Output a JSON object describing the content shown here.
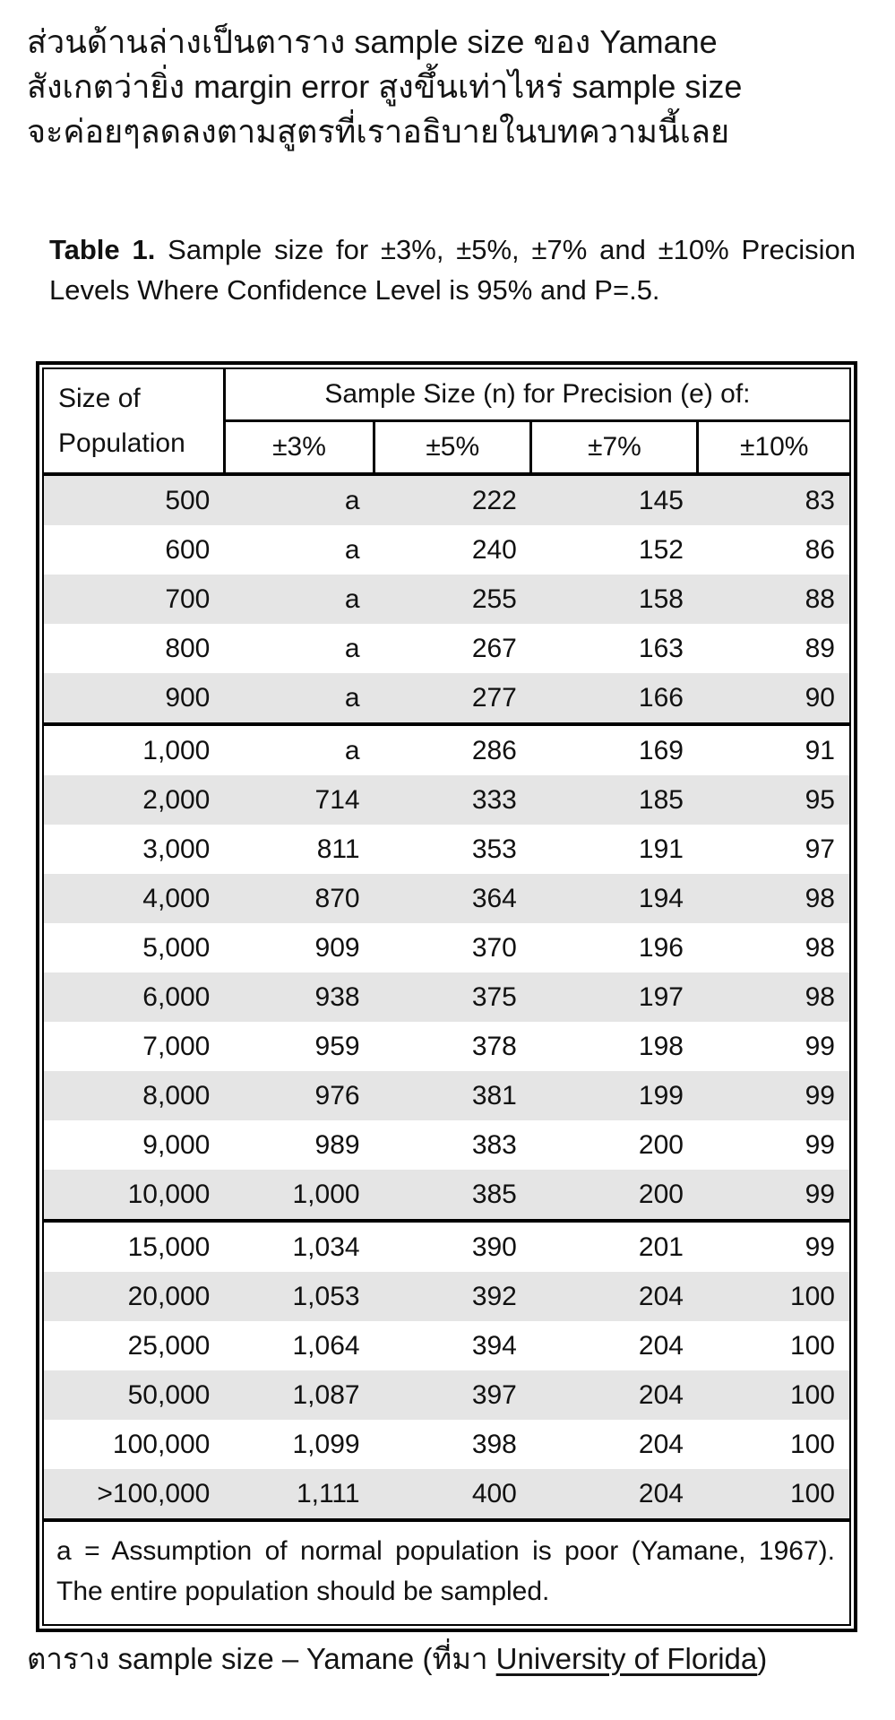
{
  "intro": {
    "lines": [
      "ส่วนด้านล่างเป็นตาราง sample size ของ Yamane",
      "สังเกตว่ายิ่ง margin error สูงขึ้นเท่าไหร่ sample size",
      "จะค่อยๆลดลงตามสูตรที่เราอธิบายในบทความนี้เลย"
    ]
  },
  "table": {
    "title_label": "Table 1.",
    "title_text": "  Sample size for ±3%, ±5%, ±7% and ±10% Precision Levels Where Confidence Level is 95% and P=.5.",
    "header": {
      "col1_line1": "Size of",
      "col1_line2": "Population",
      "span_label": "Sample Size (n) for Precision (e) of:",
      "precision_cols": [
        "±3%",
        "±5%",
        "±7%",
        "±10%"
      ]
    },
    "groups": [
      {
        "rows": [
          [
            "500",
            "a",
            "222",
            "145",
            "83"
          ],
          [
            "600",
            "a",
            "240",
            "152",
            "86"
          ],
          [
            "700",
            "a",
            "255",
            "158",
            "88"
          ],
          [
            "800",
            "a",
            "267",
            "163",
            "89"
          ],
          [
            "900",
            "a",
            "277",
            "166",
            "90"
          ]
        ]
      },
      {
        "rows": [
          [
            "1,000",
            "a",
            "286",
            "169",
            "91"
          ],
          [
            "2,000",
            "714",
            "333",
            "185",
            "95"
          ],
          [
            "3,000",
            "811",
            "353",
            "191",
            "97"
          ],
          [
            "4,000",
            "870",
            "364",
            "194",
            "98"
          ],
          [
            "5,000",
            "909",
            "370",
            "196",
            "98"
          ],
          [
            "6,000",
            "938",
            "375",
            "197",
            "98"
          ],
          [
            "7,000",
            "959",
            "378",
            "198",
            "99"
          ],
          [
            "8,000",
            "976",
            "381",
            "199",
            "99"
          ],
          [
            "9,000",
            "989",
            "383",
            "200",
            "99"
          ],
          [
            "10,000",
            "1,000",
            "385",
            "200",
            "99"
          ]
        ]
      },
      {
        "rows": [
          [
            "15,000",
            "1,034",
            "390",
            "201",
            "99"
          ],
          [
            "20,000",
            "1,053",
            "392",
            "204",
            "100"
          ],
          [
            "25,000",
            "1,064",
            "394",
            "204",
            "100"
          ],
          [
            "50,000",
            "1,087",
            "397",
            "204",
            "100"
          ],
          [
            "100,000",
            "1,099",
            "398",
            "204",
            "100"
          ],
          [
            ">100,000",
            "1,111",
            "400",
            "204",
            "100"
          ]
        ]
      }
    ],
    "footnote": "a = Assumption of normal population is poor (Yamane, 1967).  The entire population should be sampled."
  },
  "caption": {
    "prefix": "ตาราง sample size – Yamane (ที่มา ",
    "link_text": "University of Florida",
    "suffix": ")"
  },
  "colors": {
    "row_shade": "#e5e5e5",
    "border": "#000000",
    "text": "#111111"
  }
}
